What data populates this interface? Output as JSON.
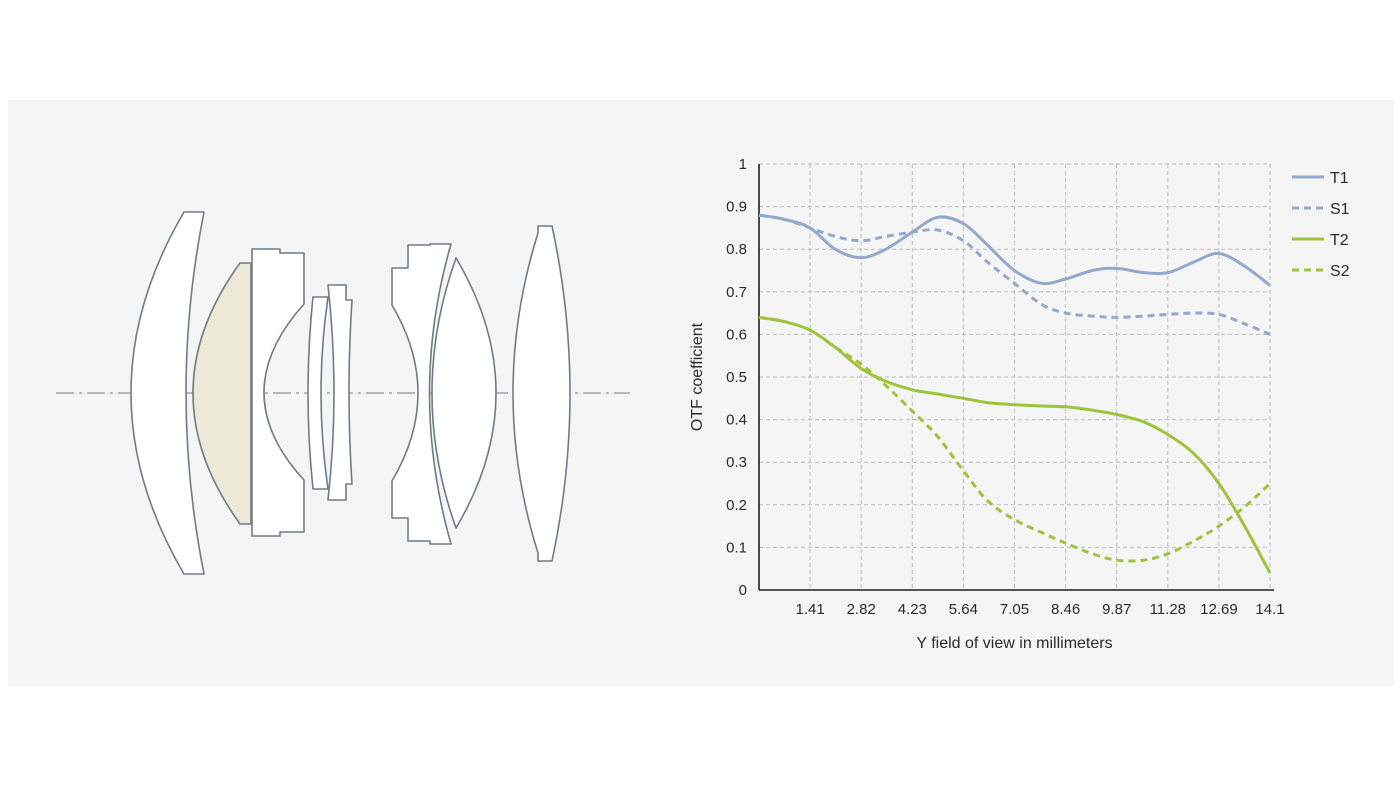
{
  "colors": {
    "panel_bg": "#f5f5f5",
    "lens_outline": "#6f7c86",
    "lens_special_fill": "#ece9d6",
    "blue_series": "#94a8c9",
    "green_series": "#9fc33d",
    "grid": "#bcbcbc"
  },
  "chart_data": {
    "type": "line",
    "xlabel": "Y field of view in millimeters",
    "ylabel": "OTF coefficient",
    "xlim": [
      0,
      14.1
    ],
    "ylim": [
      0,
      1
    ],
    "x_ticks": [
      1.41,
      2.82,
      4.23,
      5.64,
      7.05,
      8.46,
      9.87,
      11.28,
      12.69,
      14.1
    ],
    "x_tick_labels": [
      "1.41",
      "2.82",
      "4.23",
      "5.64",
      "7.05",
      "8.46",
      "9.87",
      "11.28",
      "12.69",
      "14.1"
    ],
    "y_ticks": [
      0,
      0.1,
      0.2,
      0.3,
      0.4,
      0.5,
      0.6,
      0.7,
      0.8,
      0.9,
      1
    ],
    "y_tick_labels": [
      "0",
      "0.1",
      "0.2",
      "0.3",
      "0.4",
      "0.5",
      "0.6",
      "0.7",
      "0.8",
      "0.9",
      "1"
    ],
    "grid": true,
    "legend_position": "right",
    "series": [
      {
        "name": "T1",
        "color": "#94a8c9",
        "dash": false,
        "x": [
          0,
          0.7,
          1.41,
          2.1,
          2.82,
          3.5,
          4.23,
          4.93,
          5.64,
          6.3,
          7.05,
          7.8,
          8.46,
          9.2,
          9.87,
          10.6,
          11.28,
          12.0,
          12.69,
          13.4,
          14.1
        ],
        "y": [
          0.88,
          0.87,
          0.85,
          0.8,
          0.78,
          0.8,
          0.84,
          0.875,
          0.86,
          0.81,
          0.75,
          0.72,
          0.73,
          0.75,
          0.755,
          0.745,
          0.745,
          0.77,
          0.79,
          0.76,
          0.715
        ]
      },
      {
        "name": "S1",
        "color": "#94a8c9",
        "dash": true,
        "x": [
          0,
          0.7,
          1.41,
          2.1,
          2.82,
          3.5,
          4.23,
          4.93,
          5.64,
          6.3,
          7.05,
          7.8,
          8.46,
          9.2,
          9.87,
          10.6,
          11.28,
          12.0,
          12.69,
          13.4,
          14.1
        ],
        "y": [
          0.88,
          0.87,
          0.85,
          0.83,
          0.82,
          0.83,
          0.84,
          0.845,
          0.82,
          0.77,
          0.72,
          0.67,
          0.65,
          0.643,
          0.64,
          0.643,
          0.647,
          0.65,
          0.647,
          0.625,
          0.6
        ]
      },
      {
        "name": "T2",
        "color": "#9fc33d",
        "dash": false,
        "x": [
          0,
          0.7,
          1.41,
          2.1,
          2.82,
          3.5,
          4.23,
          4.93,
          5.64,
          6.3,
          7.05,
          7.8,
          8.46,
          9.2,
          9.87,
          10.6,
          11.28,
          12.0,
          12.69,
          13.4,
          14.1
        ],
        "y": [
          0.64,
          0.63,
          0.61,
          0.57,
          0.52,
          0.49,
          0.47,
          0.46,
          0.45,
          0.44,
          0.435,
          0.432,
          0.43,
          0.422,
          0.412,
          0.395,
          0.365,
          0.32,
          0.25,
          0.15,
          0.04
        ]
      },
      {
        "name": "S2",
        "color": "#9fc33d",
        "dash": true,
        "x": [
          0,
          0.7,
          1.41,
          2.1,
          2.82,
          3.5,
          4.23,
          4.93,
          5.64,
          6.3,
          7.05,
          7.8,
          8.46,
          9.2,
          9.87,
          10.6,
          11.28,
          12.0,
          12.69,
          13.4,
          14.1
        ],
        "y": [
          0.64,
          0.63,
          0.61,
          0.57,
          0.53,
          0.48,
          0.42,
          0.36,
          0.28,
          0.21,
          0.165,
          0.135,
          0.11,
          0.085,
          0.07,
          0.07,
          0.085,
          0.115,
          0.15,
          0.195,
          0.25
        ]
      }
    ]
  }
}
